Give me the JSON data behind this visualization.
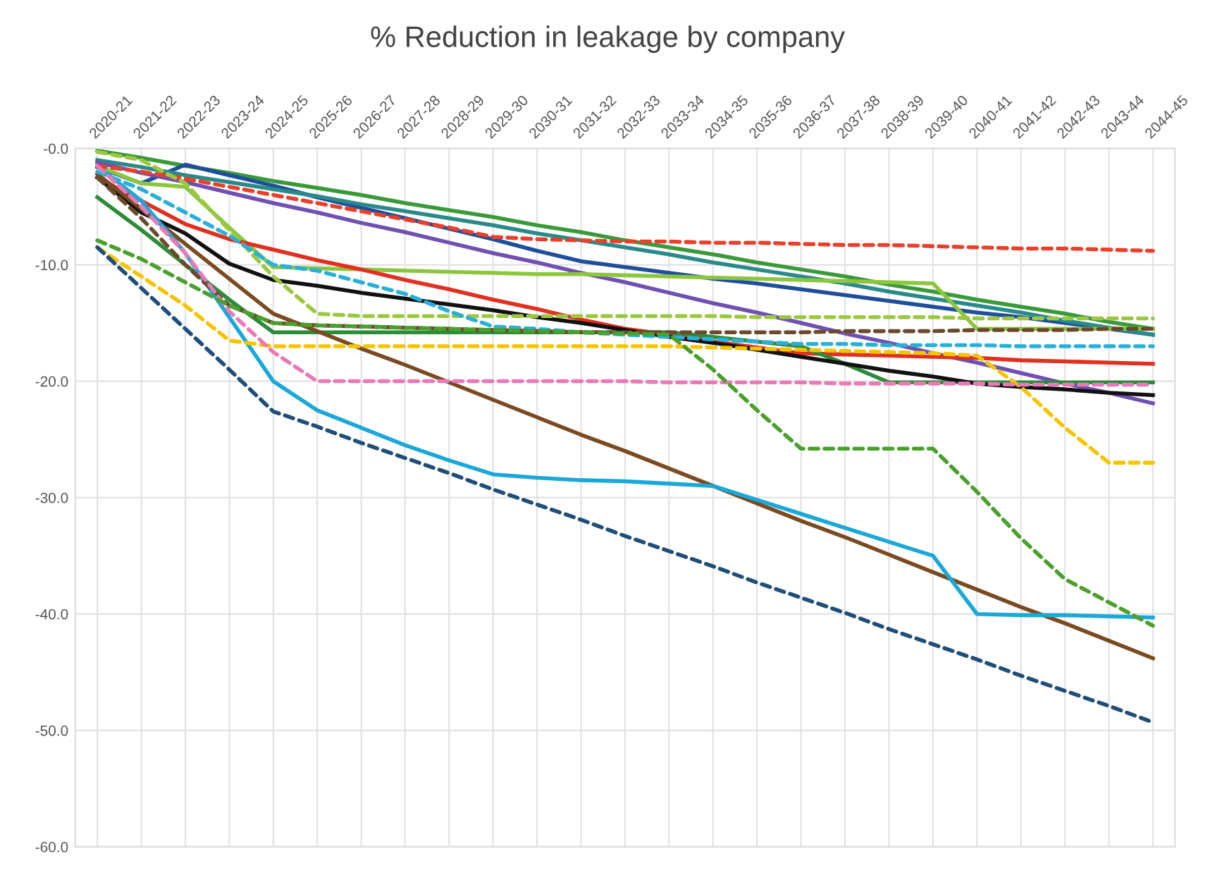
{
  "chart_data": {
    "type": "line",
    "title": "% Reduction in leakage by company",
    "categories": [
      "2020-21",
      "2021-22",
      "2022-23",
      "2023-24",
      "2024-25",
      "2025-26",
      "2026-27",
      "2027-28",
      "2028-29",
      "2029-30",
      "2030-31",
      "2031-32",
      "2032-33",
      "2033-34",
      "2034-35",
      "2035-36",
      "2036-37",
      "2037-38",
      "2038-39",
      "2039-40",
      "2040-41",
      "2041-42",
      "2042-43",
      "2043-44",
      "2044-45"
    ],
    "ylim": [
      -60,
      0
    ],
    "yticks": [
      {
        "value": 0,
        "label": "-0.0"
      },
      {
        "value": -10,
        "label": "-10.0"
      },
      {
        "value": -20,
        "label": "-20.0"
      },
      {
        "value": -30,
        "label": "-30.0"
      },
      {
        "value": -40,
        "label": "-40.0"
      },
      {
        "value": -50,
        "label": "-50.0"
      },
      {
        "value": -60,
        "label": "-60.0"
      }
    ],
    "grid": true,
    "marker": "none",
    "series": [
      {
        "color": "#e8402a",
        "line_style": "dashed",
        "values": [
          -1.5,
          -2.0,
          -2.6,
          -3.3,
          -4.0,
          -4.7,
          -5.4,
          -6.1,
          -6.8,
          -7.6,
          -7.8,
          -7.9,
          -8.0,
          -8.0,
          -8.1,
          -8.1,
          -8.2,
          -8.3,
          -8.3,
          -8.4,
          -8.5,
          -8.6,
          -8.6,
          -8.7,
          -8.8
        ]
      },
      {
        "color": "#3a9a3a",
        "line_style": "solid",
        "values": [
          -0.2,
          -0.8,
          -1.5,
          -2.1,
          -2.8,
          -3.4,
          -4.0,
          -4.7,
          -5.3,
          -5.9,
          -6.6,
          -7.2,
          -7.9,
          -8.5,
          -9.1,
          -9.8,
          -10.4,
          -11.0,
          -11.7,
          -12.3,
          -13.0,
          -13.6,
          -14.2,
          -14.9,
          -15.5
        ]
      },
      {
        "color": "#1f4e9a",
        "line_style": "solid",
        "values": [
          -1.6,
          -3.0,
          -1.4,
          -2.3,
          -3.2,
          -4.2,
          -5.1,
          -6.0,
          -6.9,
          -7.8,
          -8.8,
          -9.7,
          -10.2,
          -10.7,
          -11.2,
          -11.6,
          -12.1,
          -12.6,
          -13.1,
          -13.6,
          -14.1,
          -14.5,
          -15.0,
          -15.5,
          -16.0
        ]
      },
      {
        "color": "#2a8a8a",
        "line_style": "solid",
        "values": [
          -1.0,
          -1.6,
          -2.3,
          -2.9,
          -3.5,
          -4.1,
          -4.8,
          -5.4,
          -6.0,
          -6.6,
          -7.3,
          -7.9,
          -8.5,
          -9.1,
          -9.8,
          -10.4,
          -11.0,
          -11.6,
          -12.3,
          -12.9,
          -13.5,
          -14.1,
          -14.8,
          -15.4,
          -16.0
        ]
      },
      {
        "color": "#7050b0",
        "line_style": "solid",
        "values": [
          -1.2,
          -2.1,
          -2.9,
          -3.8,
          -4.7,
          -5.5,
          -6.4,
          -7.2,
          -8.1,
          -9.0,
          -9.8,
          -10.7,
          -11.5,
          -12.4,
          -13.3,
          -14.1,
          -15.0,
          -15.9,
          -16.7,
          -17.6,
          -18.4,
          -19.3,
          -20.2,
          -21.0,
          -21.9
        ]
      },
      {
        "color": "#8cc63f",
        "line_style": "solid",
        "values": [
          -1.5,
          -3.0,
          -3.3,
          -6.8,
          -10.2,
          -10.3,
          -10.4,
          -10.5,
          -10.6,
          -10.7,
          -10.8,
          -10.8,
          -10.9,
          -11.0,
          -11.1,
          -11.2,
          -11.3,
          -11.4,
          -11.5,
          -11.6,
          -15.5,
          -15.5,
          -15.5,
          -15.5,
          -15.5
        ]
      },
      {
        "color": "#e03020",
        "line_style": "solid",
        "values": [
          -2.5,
          -4.5,
          -6.5,
          -7.8,
          -8.7,
          -9.6,
          -10.4,
          -11.3,
          -12.1,
          -13.0,
          -13.8,
          -14.7,
          -15.5,
          -16.0,
          -16.6,
          -17.1,
          -17.6,
          -17.7,
          -17.8,
          -17.9,
          -18.0,
          -18.2,
          -18.3,
          -18.4,
          -18.5
        ]
      },
      {
        "color": "#9cc840",
        "line_style": "dashed",
        "values": [
          -0.3,
          -1.0,
          -3.0,
          -7.0,
          -11.0,
          -14.2,
          -14.4,
          -14.4,
          -14.4,
          -14.4,
          -14.4,
          -14.4,
          -14.4,
          -14.4,
          -14.4,
          -14.5,
          -14.5,
          -14.5,
          -14.5,
          -14.5,
          -14.6,
          -14.6,
          -14.6,
          -14.6,
          -14.6
        ]
      },
      {
        "color": "#2ab0d8",
        "line_style": "dashed",
        "values": [
          -2.0,
          -3.5,
          -5.5,
          -7.5,
          -10.0,
          -10.5,
          -11.5,
          -12.5,
          -14.0,
          -15.3,
          -15.5,
          -15.8,
          -16.0,
          -16.2,
          -16.4,
          -16.6,
          -16.8,
          -16.8,
          -16.9,
          -16.9,
          -16.9,
          -17.0,
          -17.0,
          -17.0,
          -17.0
        ]
      },
      {
        "color": "#6b4a2a",
        "line_style": "dashed",
        "values": [
          -2.5,
          -6.0,
          -10.0,
          -13.5,
          -15.0,
          -15.2,
          -15.3,
          -15.4,
          -15.5,
          -15.6,
          -15.7,
          -15.8,
          -15.8,
          -15.8,
          -15.8,
          -15.8,
          -15.8,
          -15.7,
          -15.7,
          -15.7,
          -15.6,
          -15.6,
          -15.6,
          -15.5,
          -15.5
        ]
      },
      {
        "color": "#2e8b3a",
        "line_style": "solid",
        "values": [
          -4.2,
          -7.0,
          -10.0,
          -13.0,
          -15.8,
          -15.8,
          -15.8,
          -15.8,
          -15.8,
          -15.8,
          -15.8,
          -15.8,
          -15.8,
          -15.8,
          -16.2,
          -16.6,
          -17.0,
          -18.5,
          -20.1,
          -20.1,
          -20.1,
          -20.1,
          -20.1,
          -20.1,
          -20.1
        ]
      },
      {
        "color": "#f5c400",
        "line_style": "dashed",
        "values": [
          -8.5,
          -11.0,
          -13.5,
          -16.5,
          -17.0,
          -17.0,
          -17.0,
          -17.0,
          -17.0,
          -17.0,
          -17.0,
          -17.0,
          -17.0,
          -17.0,
          -17.1,
          -17.2,
          -17.3,
          -17.4,
          -17.5,
          -17.6,
          -17.8,
          -20.5,
          -24.0,
          -27.0,
          -27.0
        ]
      },
      {
        "color": "#e87ab8",
        "line_style": "dashed",
        "values": [
          -1.5,
          -5.0,
          -9.0,
          -14.0,
          -17.5,
          -20.0,
          -20.0,
          -20.0,
          -20.0,
          -20.0,
          -20.0,
          -20.0,
          -20.0,
          -20.1,
          -20.1,
          -20.1,
          -20.1,
          -20.2,
          -20.2,
          -20.2,
          -20.2,
          -20.3,
          -20.3,
          -20.3,
          -20.3
        ]
      },
      {
        "color": "#4aa02c",
        "line_style": "dashed",
        "values": [
          -7.9,
          -9.5,
          -11.5,
          -13.5,
          -15.0,
          -15.2,
          -15.3,
          -15.4,
          -15.5,
          -15.6,
          -15.7,
          -15.8,
          -15.9,
          -16.0,
          -19.0,
          -22.5,
          -25.8,
          -25.8,
          -25.8,
          -25.8,
          -29.5,
          -33.5,
          -37.0,
          -39.0,
          -41.0
        ]
      },
      {
        "color": "#111111",
        "line_style": "solid",
        "values": [
          -2.5,
          -5.5,
          -7.3,
          -9.9,
          -11.3,
          -11.8,
          -12.4,
          -12.9,
          -13.4,
          -13.9,
          -14.5,
          -15.0,
          -15.6,
          -16.2,
          -16.7,
          -17.3,
          -17.9,
          -18.5,
          -19.1,
          -19.6,
          -20.2,
          -20.5,
          -20.7,
          -21.0,
          -21.2
        ]
      },
      {
        "color": "#7a4a20",
        "line_style": "solid",
        "values": [
          -2.2,
          -5.2,
          -8.2,
          -11.2,
          -14.2,
          -15.7,
          -17.2,
          -18.6,
          -20.1,
          -21.6,
          -23.1,
          -24.6,
          -26.0,
          -27.5,
          -29.0,
          -30.5,
          -32.0,
          -33.4,
          -34.9,
          -36.4,
          -37.9,
          -39.4,
          -40.8,
          -42.3,
          -43.8
        ]
      },
      {
        "color": "#1aa8d8",
        "line_style": "solid",
        "values": [
          -1.5,
          -4.5,
          -9.0,
          -14.5,
          -20.0,
          -22.5,
          -24.0,
          -25.5,
          -26.8,
          -28.0,
          -28.3,
          -28.5,
          -28.6,
          -28.8,
          -29.0,
          -30.2,
          -31.4,
          -32.6,
          -33.8,
          -35.0,
          -40.0,
          -40.1,
          -40.1,
          -40.2,
          -40.3
        ]
      },
      {
        "color": "#1f4e79",
        "line_style": "dashed",
        "values": [
          -8.5,
          -12.0,
          -15.5,
          -19.0,
          -22.6,
          -23.9,
          -25.3,
          -26.6,
          -27.9,
          -29.3,
          -30.6,
          -31.9,
          -33.3,
          -34.6,
          -35.9,
          -37.3,
          -38.6,
          -39.9,
          -41.3,
          -42.6,
          -43.9,
          -45.3,
          -46.6,
          -47.9,
          -49.3
        ]
      }
    ]
  }
}
